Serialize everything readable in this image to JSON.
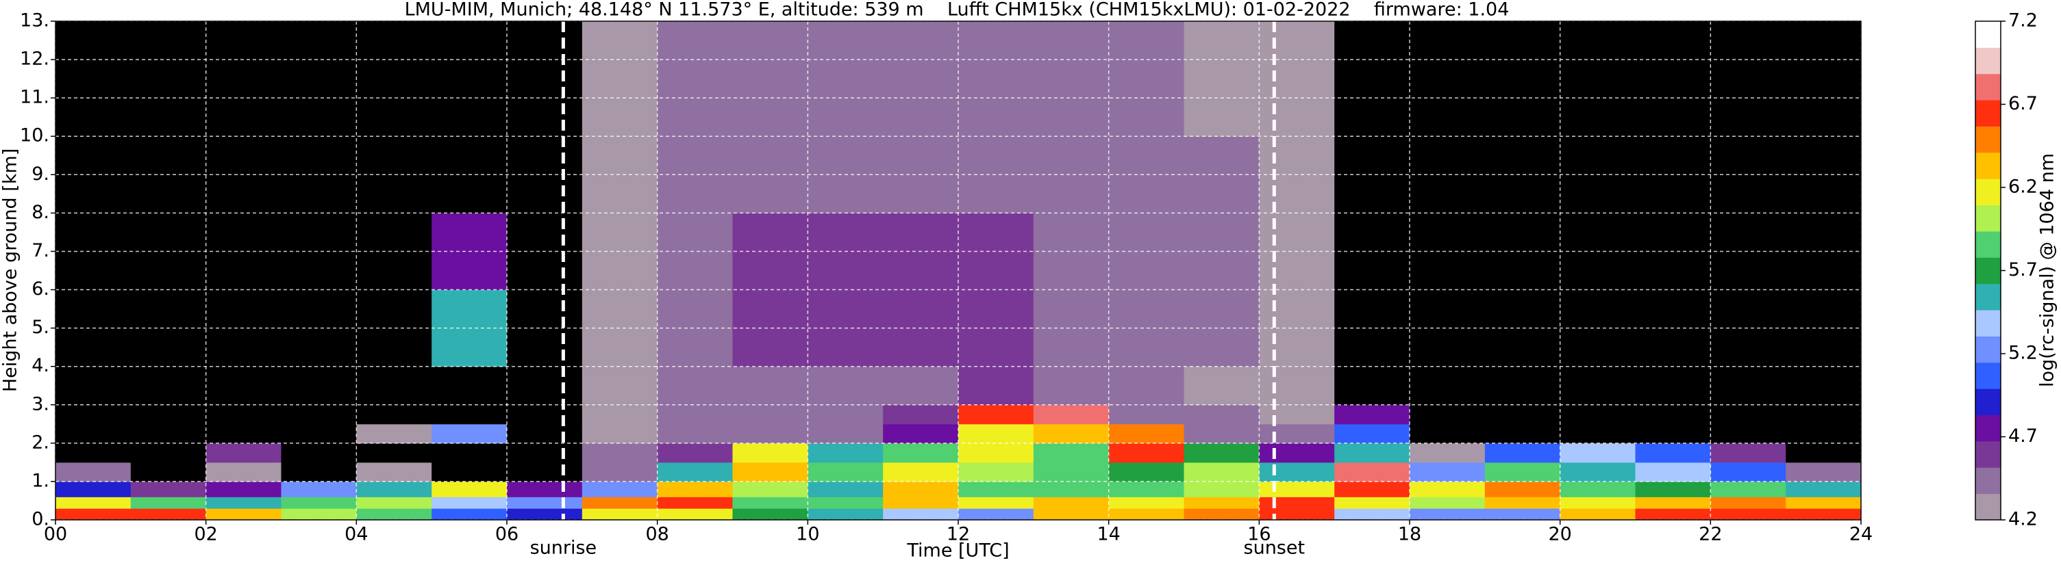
{
  "chart_data": {
    "type": "heatmap",
    "title": "LMU-MIM, Munich; 48.148° N 11.573° E, altitude: 539 m    Lufft CHM15kx (CHM15kxLMU): 01-02-2022    firmware: 1.04",
    "x_label": "Time [UTC]",
    "y_label": "Height above ground [km]",
    "colorbar_label": "log(rc-signal) @ 1064 nm",
    "x_bins": [
      0,
      1,
      2,
      3,
      4,
      5,
      6,
      7,
      8,
      9,
      10,
      11,
      12,
      13,
      14,
      15,
      16,
      17,
      18,
      19,
      20,
      21,
      22,
      23,
      24
    ],
    "y_bins": [
      0,
      0.3,
      0.6,
      1,
      1.5,
      2,
      2.5,
      3,
      4,
      6,
      8,
      10,
      13
    ],
    "values": [
      [
        6.7,
        6.6,
        6.4,
        6.0,
        5.8,
        5.0,
        4.9,
        6.2,
        6.1,
        5.7,
        5.6,
        5.4,
        5.3,
        6.3,
        6.4,
        6.5,
        6.6,
        5.4,
        5.2,
        5.3,
        6.3,
        6.6,
        6.7,
        6.6
      ],
      [
        6.2,
        5.8,
        5.6,
        5.9,
        6.0,
        5.4,
        5.2,
        6.5,
        6.6,
        5.9,
        5.8,
        6.4,
        6.1,
        6.3,
        6.2,
        6.4,
        6.6,
        6.2,
        6.0,
        6.3,
        6.2,
        6.4,
        6.5,
        6.3
      ],
      [
        4.9,
        4.6,
        4.8,
        5.3,
        5.6,
        6.2,
        4.7,
        5.2,
        6.4,
        6.0,
        5.6,
        6.3,
        5.9,
        5.8,
        5.9,
        6.0,
        6.1,
        6.7,
        6.1,
        6.5,
        5.9,
        5.7,
        5.8,
        5.6
      ],
      [
        4.5,
        4.0,
        4.3,
        3.9,
        4.2,
        4.0,
        3.9,
        4.5,
        5.5,
        6.3,
        5.8,
        6.2,
        6.0,
        5.9,
        5.7,
        6.0,
        5.5,
        6.8,
        5.3,
        5.8,
        5.6,
        5.4,
        5.0,
        4.4
      ],
      [
        3.9,
        3.9,
        4.6,
        3.9,
        3.9,
        3.9,
        3.9,
        4.4,
        4.6,
        6.2,
        5.6,
        5.9,
        6.1,
        5.8,
        6.6,
        5.7,
        4.8,
        5.6,
        4.3,
        5.0,
        5.4,
        5.0,
        4.6,
        3.9
      ],
      [
        3.9,
        3.9,
        3.9,
        3.9,
        4.3,
        5.2,
        3.9,
        4.3,
        4.4,
        4.5,
        4.5,
        4.8,
        6.2,
        6.3,
        6.5,
        4.5,
        4.4,
        5.0,
        3.9,
        3.9,
        3.9,
        3.9,
        3.9,
        3.9
      ],
      [
        3.9,
        3.9,
        3.9,
        3.9,
        3.9,
        3.9,
        3.9,
        4.3,
        4.4,
        4.4,
        4.4,
        4.6,
        6.7,
        6.8,
        4.5,
        4.4,
        4.3,
        4.8,
        3.9,
        3.9,
        3.9,
        3.9,
        3.9,
        3.9
      ],
      [
        3.9,
        3.9,
        3.9,
        3.9,
        3.9,
        4.1,
        3.9,
        4.3,
        4.4,
        4.4,
        4.5,
        4.5,
        4.6,
        4.4,
        4.4,
        4.3,
        4.2,
        3.9,
        3.9,
        3.9,
        3.9,
        3.9,
        3.9,
        3.9
      ],
      [
        3.9,
        3.9,
        3.9,
        3.9,
        3.9,
        5.6,
        3.9,
        4.3,
        4.5,
        4.6,
        4.6,
        4.6,
        4.6,
        4.5,
        4.5,
        4.4,
        4.3,
        3.9,
        3.9,
        3.9,
        3.9,
        3.9,
        3.9,
        3.9
      ],
      [
        3.9,
        3.9,
        3.9,
        3.9,
        3.9,
        4.8,
        3.9,
        4.3,
        4.5,
        4.6,
        4.6,
        4.6,
        4.6,
        4.5,
        4.5,
        4.4,
        4.3,
        3.9,
        3.9,
        3.9,
        3.9,
        3.9,
        3.9,
        3.9
      ],
      [
        3.9,
        3.9,
        3.9,
        3.9,
        3.9,
        3.9,
        3.9,
        4.3,
        4.4,
        4.5,
        4.5,
        4.5,
        4.5,
        4.5,
        4.4,
        4.4,
        4.3,
        3.9,
        3.9,
        3.9,
        3.9,
        3.9,
        3.9,
        3.9
      ],
      [
        3.9,
        3.9,
        3.9,
        3.9,
        3.9,
        3.9,
        3.9,
        4.3,
        4.4,
        4.4,
        4.4,
        4.4,
        4.4,
        4.4,
        4.4,
        4.3,
        4.3,
        3.9,
        3.9,
        3.9,
        3.9,
        3.9,
        3.9,
        3.9
      ]
    ],
    "xlim": [
      0,
      24
    ],
    "ylim": [
      0,
      13
    ],
    "xticks": [
      {
        "value": 0,
        "label": "00"
      },
      {
        "value": 2,
        "label": "02"
      },
      {
        "value": 4,
        "label": "04"
      },
      {
        "value": 6,
        "label": "06"
      },
      {
        "value": 8,
        "label": "08"
      },
      {
        "value": 10,
        "label": "10"
      },
      {
        "value": 12,
        "label": "12"
      },
      {
        "value": 14,
        "label": "14"
      },
      {
        "value": 16,
        "label": "16"
      },
      {
        "value": 18,
        "label": "18"
      },
      {
        "value": 20,
        "label": "20"
      },
      {
        "value": 22,
        "label": "22"
      },
      {
        "value": 24,
        "label": "24"
      }
    ],
    "yticks": [
      {
        "value": 0,
        "label": "0."
      },
      {
        "value": 1,
        "label": "1."
      },
      {
        "value": 2,
        "label": "2."
      },
      {
        "value": 3,
        "label": "3."
      },
      {
        "value": 4,
        "label": "4."
      },
      {
        "value": 5,
        "label": "5."
      },
      {
        "value": 6,
        "label": "6."
      },
      {
        "value": 7,
        "label": "7."
      },
      {
        "value": 8,
        "label": "8."
      },
      {
        "value": 9,
        "label": "9."
      },
      {
        "value": 10,
        "label": "10."
      },
      {
        "value": 11,
        "label": "11."
      },
      {
        "value": 12,
        "label": "12."
      },
      {
        "value": 13,
        "label": "13."
      }
    ],
    "colorbar_lim": [
      4.2,
      7.2
    ],
    "colorbar_ticks": [
      4.2,
      4.7,
      5.2,
      5.7,
      6.2,
      6.7,
      7.2
    ],
    "colormap": [
      "#a898a8",
      "#9070a0",
      "#7a3896",
      "#6a0fa0",
      "#2020d0",
      "#3060ff",
      "#7090ff",
      "#a8c8ff",
      "#30b0b0",
      "#20a040",
      "#50d070",
      "#b0f050",
      "#f0f020",
      "#ffc000",
      "#ff8000",
      "#ff3010",
      "#f07070",
      "#f0c8c8",
      "#ffffff"
    ],
    "background": "#000000",
    "grid": true,
    "annotations": [
      {
        "text": "sunrise",
        "x": 6.75
      },
      {
        "text": "sunset",
        "x": 16.2
      }
    ]
  }
}
